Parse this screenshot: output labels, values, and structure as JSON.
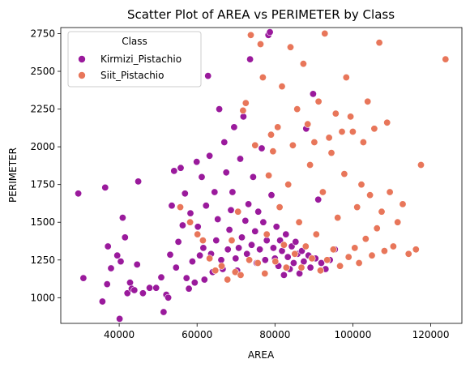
{
  "chart_data": {
    "type": "scatter",
    "title": "Scatter Plot of AREA vs PERIMETER by Class",
    "xlabel": "AREA",
    "ylabel": "PERIMETER",
    "xlim": [
      25000,
      128000
    ],
    "ylim": [
      830,
      2790
    ],
    "xticks": [
      40000,
      60000,
      80000,
      100000,
      120000
    ],
    "xtick_labels": [
      "40000",
      "60000",
      "80000",
      "100000",
      "120000"
    ],
    "yticks": [
      1000,
      1250,
      1500,
      1750,
      2000,
      2250,
      2500,
      2750
    ],
    "ytick_labels": [
      "1000",
      "1250",
      "1500",
      "1750",
      "2000",
      "2250",
      "2500",
      "2750"
    ],
    "grid": false,
    "legend": {
      "title": "Class",
      "position": "top-left",
      "entries": [
        "Kirmizi_Pistachio",
        "Siit_Pistachio"
      ]
    },
    "series": [
      {
        "name": "Kirmizi_Pistachio",
        "color": "#9a1a9c",
        "points": [
          [
            29500,
            1690
          ],
          [
            30800,
            1130
          ],
          [
            35700,
            975
          ],
          [
            36400,
            1730
          ],
          [
            37100,
            1340
          ],
          [
            37900,
            1195
          ],
          [
            36900,
            1090
          ],
          [
            39500,
            1280
          ],
          [
            40100,
            860
          ],
          [
            40400,
            1240
          ],
          [
            40900,
            1530
          ],
          [
            41500,
            1400
          ],
          [
            42100,
            1030
          ],
          [
            42800,
            1100
          ],
          [
            43200,
            1060
          ],
          [
            43900,
            1050
          ],
          [
            44600,
            1220
          ],
          [
            44900,
            1770
          ],
          [
            46100,
            1030
          ],
          [
            47800,
            1065
          ],
          [
            49500,
            1065
          ],
          [
            50800,
            1135
          ],
          [
            51400,
            905
          ],
          [
            52100,
            1020
          ],
          [
            52600,
            1000
          ],
          [
            53100,
            1285
          ],
          [
            53500,
            1610
          ],
          [
            54100,
            1840
          ],
          [
            54600,
            1200
          ],
          [
            55200,
            1370
          ],
          [
            55800,
            1860
          ],
          [
            56300,
            1480
          ],
          [
            56900,
            1690
          ],
          [
            57300,
            1130
          ],
          [
            57900,
            1060
          ],
          [
            58300,
            1560
          ],
          [
            58800,
            1240
          ],
          [
            59400,
            1100
          ],
          [
            59900,
            1900
          ],
          [
            60200,
            1470
          ],
          [
            60700,
            1280
          ],
          [
            61200,
            1800
          ],
          [
            61600,
            1330
          ],
          [
            61900,
            1120
          ],
          [
            62300,
            1610
          ],
          [
            62800,
            2470
          ],
          [
            63200,
            1940
          ],
          [
            63600,
            1290
          ],
          [
            64000,
            1170
          ],
          [
            64500,
            1700
          ],
          [
            64900,
            1380
          ],
          [
            65300,
            1520
          ],
          [
            65700,
            2250
          ],
          [
            66200,
            1250
          ],
          [
            66600,
            1190
          ],
          [
            67000,
            2030
          ],
          [
            67500,
            1830
          ],
          [
            67900,
            1320
          ],
          [
            68300,
            1450
          ],
          [
            68700,
            1580
          ],
          [
            69100,
            1700
          ],
          [
            69500,
            2130
          ],
          [
            69900,
            1260
          ],
          [
            70300,
            1180
          ],
          [
            70700,
            1330
          ],
          [
            71100,
            1920
          ],
          [
            71500,
            1400
          ],
          [
            71900,
            2200
          ],
          [
            72400,
            1510
          ],
          [
            72800,
            1290
          ],
          [
            73200,
            1620
          ],
          [
            73600,
            2580
          ],
          [
            74000,
            1350
          ],
          [
            74400,
            1800
          ],
          [
            74900,
            1440
          ],
          [
            75300,
            1230
          ],
          [
            75700,
            1570
          ],
          [
            76100,
            1320
          ],
          [
            76600,
            1990
          ],
          [
            77000,
            1500
          ],
          [
            77500,
            1250
          ],
          [
            77900,
            1380
          ],
          [
            78300,
            2740
          ],
          [
            78700,
            2760
          ],
          [
            79100,
            1680
          ],
          [
            79600,
            1330
          ],
          [
            80000,
            1260
          ],
          [
            80400,
            1470
          ],
          [
            80900,
            1210
          ],
          [
            81300,
            1380
          ],
          [
            81800,
            1310
          ],
          [
            82300,
            1150
          ],
          [
            82800,
            1420
          ],
          [
            83300,
            1270
          ],
          [
            83800,
            1190
          ],
          [
            84300,
            1340
          ],
          [
            84800,
            1230
          ],
          [
            85300,
            1370
          ],
          [
            85800,
            1290
          ],
          [
            86300,
            1160
          ],
          [
            86900,
            1310
          ],
          [
            87400,
            1240
          ],
          [
            88000,
            2120
          ],
          [
            88600,
            1280
          ],
          [
            89100,
            1200
          ],
          [
            89800,
            2350
          ],
          [
            90400,
            1260
          ],
          [
            91100,
            1650
          ],
          [
            91900,
            1230
          ],
          [
            93000,
            1190
          ],
          [
            94100,
            1250
          ],
          [
            95400,
            1320
          ]
        ]
      },
      {
        "name": "Siit_Pistachio",
        "color": "#e8765a",
        "points": [
          [
            55700,
            1600
          ],
          [
            58200,
            1500
          ],
          [
            60100,
            1420
          ],
          [
            61500,
            1380
          ],
          [
            63200,
            1260
          ],
          [
            64700,
            1180
          ],
          [
            66300,
            1210
          ],
          [
            67800,
            1120
          ],
          [
            68900,
            1380
          ],
          [
            69800,
            1170
          ],
          [
            70500,
            1570
          ],
          [
            71200,
            1150
          ],
          [
            71800,
            2240
          ],
          [
            72500,
            2290
          ],
          [
            73400,
            1250
          ],
          [
            73800,
            2740
          ],
          [
            74900,
            2010
          ],
          [
            75600,
            1230
          ],
          [
            76300,
            2680
          ],
          [
            76900,
            2460
          ],
          [
            77400,
            1160
          ],
          [
            77900,
            1420
          ],
          [
            78400,
            1810
          ],
          [
            79000,
            2080
          ],
          [
            79500,
            1970
          ],
          [
            80100,
            1240
          ],
          [
            80700,
            2130
          ],
          [
            81200,
            1600
          ],
          [
            81800,
            2400
          ],
          [
            82300,
            1350
          ],
          [
            82900,
            1200
          ],
          [
            83400,
            1750
          ],
          [
            84000,
            2660
          ],
          [
            84600,
            2010
          ],
          [
            85100,
            1290
          ],
          [
            85700,
            2250
          ],
          [
            86200,
            1500
          ],
          [
            86800,
            1200
          ],
          [
            87300,
            2550
          ],
          [
            87900,
            1340
          ],
          [
            88400,
            2150
          ],
          [
            89000,
            1880
          ],
          [
            89500,
            1260
          ],
          [
            90100,
            2030
          ],
          [
            90600,
            1420
          ],
          [
            91200,
            2300
          ],
          [
            91700,
            1180
          ],
          [
            92300,
            1700
          ],
          [
            92800,
            2750
          ],
          [
            93400,
            1250
          ],
          [
            93900,
            2060
          ],
          [
            94500,
            1960
          ],
          [
            95000,
            1320
          ],
          [
            95600,
            2220
          ],
          [
            96100,
            1530
          ],
          [
            96700,
            1210
          ],
          [
            97200,
            2100
          ],
          [
            97800,
            1820
          ],
          [
            98300,
            2460
          ],
          [
            98900,
            1270
          ],
          [
            99400,
            2200
          ],
          [
            100000,
            2100
          ],
          [
            100500,
            1330
          ],
          [
            101100,
            1600
          ],
          [
            101600,
            1230
          ],
          [
            102200,
            1750
          ],
          [
            102700,
            2030
          ],
          [
            103300,
            1390
          ],
          [
            103800,
            2300
          ],
          [
            104400,
            1680
          ],
          [
            104900,
            1280
          ],
          [
            105500,
            2120
          ],
          [
            106200,
            1460
          ],
          [
            106800,
            2690
          ],
          [
            107400,
            1570
          ],
          [
            108100,
            1310
          ],
          [
            108800,
            2160
          ],
          [
            109500,
            1700
          ],
          [
            110400,
            1340
          ],
          [
            111500,
            1500
          ],
          [
            112800,
            1620
          ],
          [
            114300,
            1290
          ],
          [
            116200,
            1320
          ],
          [
            117500,
            1880
          ],
          [
            123800,
            2580
          ]
        ]
      }
    ]
  }
}
